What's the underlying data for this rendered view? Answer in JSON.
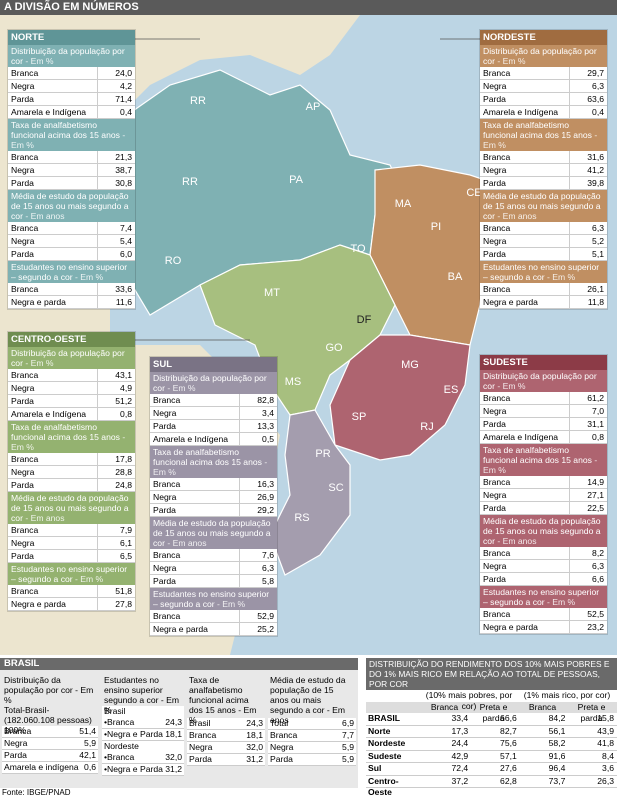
{
  "header": {
    "title": "A DIVISÃO EM NÚMEROS"
  },
  "map": {
    "labels": [
      "RR",
      "AP",
      "RR",
      "PA",
      "MA",
      "CE",
      "PI",
      "BA",
      "TO",
      "MT",
      "RO",
      "DF",
      "GO",
      "MS",
      "MG",
      "ES",
      "SP",
      "RJ",
      "PR",
      "SC",
      "RS"
    ]
  },
  "regions": [
    {
      "name": "NORTE",
      "sections": [
        {
          "title": "Distribuição da população por cor",
          "unit": " - Em %",
          "rows": [
            [
              "Branca",
              "24,0"
            ],
            [
              "Negra",
              "4,2"
            ],
            [
              "Parda",
              "71,4"
            ],
            [
              "Amarela e Indígena",
              "0,4"
            ]
          ]
        },
        {
          "title": "Taxa de analfabetismo funcional acima dos 15 anos",
          "unit": " - Em %",
          "rows": [
            [
              "Branca",
              "21,3"
            ],
            [
              "Negra",
              "38,7"
            ],
            [
              "Parda",
              "30,8"
            ]
          ]
        },
        {
          "title": "Média de estudo da população de 15 anos ou mais segundo a cor",
          "unit": " - Em anos",
          "rows": [
            [
              "Branca",
              "7,4"
            ],
            [
              "Negra",
              "5,4"
            ],
            [
              "Parda",
              "6,0"
            ]
          ]
        },
        {
          "title": "Estudantes no ensino superior – segundo a cor",
          "unit": " - Em %",
          "rows": [
            [
              "Branca",
              "33,6"
            ],
            [
              "Negra e parda",
              "11,6"
            ]
          ]
        }
      ]
    },
    {
      "name": "NORDESTE",
      "sections": [
        {
          "title": "Distribuição da população por cor",
          "unit": " - Em %",
          "rows": [
            [
              "Branca",
              "29,7"
            ],
            [
              "Negra",
              "6,3"
            ],
            [
              "Parda",
              "63,6"
            ],
            [
              "Amarela e Indígena",
              "0,4"
            ]
          ]
        },
        {
          "title": "Taxa de analfabetismo funcional acima dos 15 anos",
          "unit": " - Em %",
          "rows": [
            [
              "Branca",
              "31,6"
            ],
            [
              "Negra",
              "41,2"
            ],
            [
              "Parda",
              "39,8"
            ]
          ]
        },
        {
          "title": "Média de estudo da população de 15 anos ou mais segundo a cor",
          "unit": " - Em anos",
          "rows": [
            [
              "Branca",
              "6,3"
            ],
            [
              "Negra",
              "5,2"
            ],
            [
              "Parda",
              "5,1"
            ]
          ]
        },
        {
          "title": "Estudantes no ensino superior – segundo a cor",
          "unit": " - Em %",
          "rows": [
            [
              "Branca",
              "26,1"
            ],
            [
              "Negra e parda",
              "11,8"
            ]
          ]
        }
      ]
    },
    {
      "name": "CENTRO-OESTE",
      "sections": [
        {
          "title": "Distribuição da população por cor",
          "unit": " - Em %",
          "rows": [
            [
              "Branca",
              "43,1"
            ],
            [
              "Negra",
              "4,9"
            ],
            [
              "Parda",
              "51,2"
            ],
            [
              "Amarela e Indígena",
              "0,8"
            ]
          ]
        },
        {
          "title": "Taxa de analfabetismo funcional acima dos 15 anos",
          "unit": " - Em %",
          "rows": [
            [
              "Branca",
              "17,8"
            ],
            [
              "Negra",
              "28,8"
            ],
            [
              "Parda",
              "24,8"
            ]
          ]
        },
        {
          "title": "Média de estudo da população de 15 anos ou mais segundo a cor",
          "unit": " - Em anos",
          "rows": [
            [
              "Branca",
              "7,9"
            ],
            [
              "Negra",
              "6,1"
            ],
            [
              "Parda",
              "6,5"
            ]
          ]
        },
        {
          "title": "Estudantes no ensino superior – segundo a cor",
          "unit": " - Em %",
          "rows": [
            [
              "Branca",
              "51,8"
            ],
            [
              "Negra e parda",
              "27,8"
            ]
          ]
        }
      ]
    },
    {
      "name": "SUL",
      "sections": [
        {
          "title": "Distribuição da população por cor",
          "unit": " - Em %",
          "rows": [
            [
              "Branca",
              "82,8"
            ],
            [
              "Negra",
              "3,4"
            ],
            [
              "Parda",
              "13,3"
            ],
            [
              "Amarela e Indígena",
              "0,5"
            ]
          ]
        },
        {
          "title": "Taxa de analfabetismo funcional acima dos 15 anos",
          "unit": " - Em %",
          "rows": [
            [
              "Branca",
              "16,3"
            ],
            [
              "Negra",
              "26,9"
            ],
            [
              "Parda",
              "29,2"
            ]
          ]
        },
        {
          "title": "Média de estudo da população de 15 anos ou mais segundo a cor",
          "unit": " - Em anos",
          "rows": [
            [
              "Branca",
              "7,6"
            ],
            [
              "Negra",
              "6,3"
            ],
            [
              "Parda",
              "5,8"
            ]
          ]
        },
        {
          "title": "Estudantes no ensino superior – segundo a cor",
          "unit": " - Em %",
          "rows": [
            [
              "Branca",
              "52,9"
            ],
            [
              "Negra e parda",
              "25,2"
            ]
          ]
        }
      ]
    },
    {
      "name": "SUDESTE",
      "sections": [
        {
          "title": "Distribuição da população por cor",
          "unit": " - Em %",
          "rows": [
            [
              "Branca",
              "61,2"
            ],
            [
              "Negra",
              "7,0"
            ],
            [
              "Parda",
              "31,1"
            ],
            [
              "Amarela e Indígena",
              "0,8"
            ]
          ]
        },
        {
          "title": "Taxa de analfabetismo funcional acima dos 15 anos",
          "unit": " - Em %",
          "rows": [
            [
              "Branca",
              "14,9"
            ],
            [
              "Negra",
              "27,1"
            ],
            [
              "Parda",
              "22,5"
            ]
          ]
        },
        {
          "title": "Média de estudo da população de 15 anos ou mais segundo a cor",
          "unit": " - Em anos",
          "rows": [
            [
              "Branca",
              "8,2"
            ],
            [
              "Negra",
              "6,3"
            ],
            [
              "Parda",
              "6,6"
            ]
          ]
        },
        {
          "title": "Estudantes no ensino superior – segundo a cor",
          "unit": " - Em %",
          "rows": [
            [
              "Branca",
              "52,5"
            ],
            [
              "Negra e parda",
              "23,2"
            ]
          ]
        }
      ]
    }
  ],
  "brasil": {
    "title": "BRASIL",
    "population": {
      "title": "Distribuição da população por cor",
      "unit": " - Em %",
      "total": "Total-Brasil-(182.060.108 pessoas)",
      "total_value": "100%",
      "rows": [
        [
          "Branca",
          "51,4"
        ],
        [
          "Negra",
          "5,9"
        ],
        [
          "Parda",
          "42,1"
        ],
        [
          "Amarela e indígena",
          "0,6"
        ]
      ]
    },
    "higher_education": {
      "title": "Estudantes no ensino superior segundo a cor",
      "unit": " - Em %",
      "groups": [
        {
          "name": "Brasil",
          "rows": [
            [
              "•Branca",
              "24,3"
            ],
            [
              "•Negra e Parda",
              "18,1"
            ]
          ]
        },
        {
          "name": "Nordeste",
          "rows": [
            [
              "•Branca",
              "32,0"
            ],
            [
              "•Negra e Parda",
              "31,2"
            ]
          ]
        }
      ]
    },
    "illiteracy": {
      "title": "Taxa de analfabetismo funcional acima dos 15 anos",
      "unit": " - Em %",
      "rows": [
        [
          "Brasil",
          "24,3"
        ],
        [
          "Branca",
          "18,1"
        ],
        [
          "Negra",
          "32,0"
        ],
        [
          "Parda",
          "31,2"
        ]
      ]
    },
    "study": {
      "title": "Média de estudo da população de 15 anos ou mais segundo a cor",
      "unit": " - Em anos",
      "rows": [
        [
          "Total",
          "6,9"
        ],
        [
          "Branca",
          "7,7"
        ],
        [
          "Negra",
          "5,9"
        ],
        [
          "Parda",
          "5,9"
        ]
      ]
    }
  },
  "income": {
    "title": "DISTRIBUIÇÃO DO RENDIMENTO DOS 10% MAIS POBRES E DO 1% MAIS RICO EM RELAÇÃO AO TOTAL DE PESSOAS, POR COR",
    "groups": [
      "(10% mais pobres, por cor)",
      "(1% mais rico, por cor)"
    ],
    "columns": [
      "Branca",
      "Preta e parda",
      "Branca",
      "Preta e parda"
    ],
    "rows": [
      [
        "BRASIL",
        "33,4",
        "66,6",
        "84,2",
        "15,8"
      ],
      [
        "Norte",
        "17,3",
        "82,7",
        "56,1",
        "43,9"
      ],
      [
        "Nordeste",
        "24,4",
        "75,6",
        "58,2",
        "41,8"
      ],
      [
        "Sudeste",
        "42,9",
        "57,1",
        "91,6",
        "8,4"
      ],
      [
        "Sul",
        "72,4",
        "27,6",
        "96,4",
        "3,6"
      ],
      [
        "Centro-Oeste",
        "37,2",
        "62,8",
        "73,7",
        "26,3"
      ]
    ]
  },
  "footer": {
    "source": "Fonte: IBGE/PNAD"
  }
}
